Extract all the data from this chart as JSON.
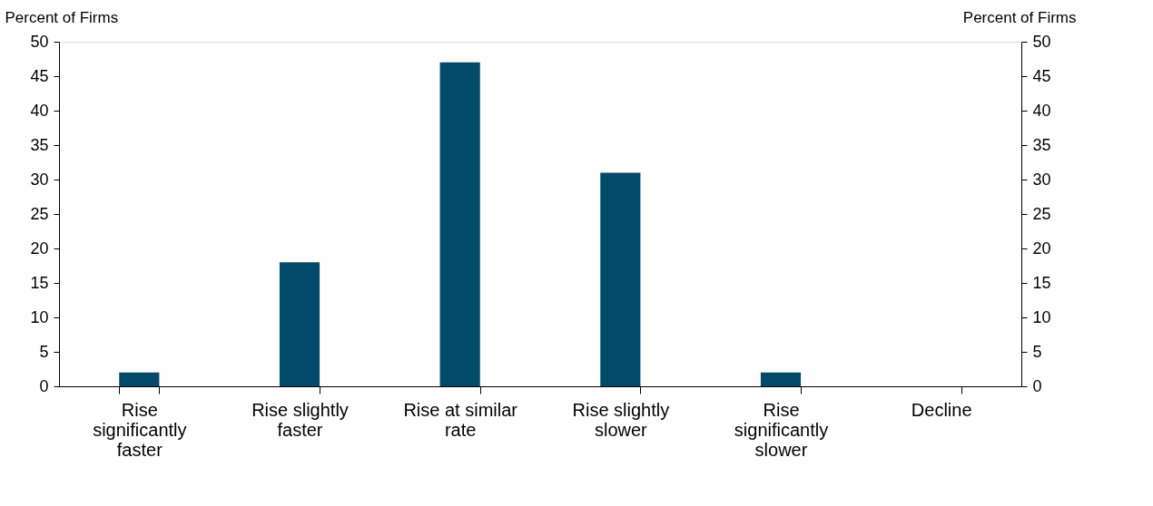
{
  "chart_data": {
    "type": "bar",
    "ylabel": "Percent of Firms",
    "y2label": "Percent of Firms",
    "categories": [
      "Rise significantly faster",
      "Rise slightly faster",
      "Rise at similar rate",
      "Rise slightly slower",
      "Rise significantly slower",
      "Decline"
    ],
    "values": [
      2,
      18,
      47,
      31,
      2,
      0
    ],
    "color": "#024a6a",
    "ylim": [
      0,
      50
    ],
    "yticks": [
      0,
      5,
      10,
      15,
      20,
      25,
      30,
      35,
      40,
      45,
      50
    ],
    "y2lim": [
      0,
      50
    ],
    "y2ticks": [
      0,
      5,
      10,
      15,
      20,
      25,
      30,
      35,
      40,
      45,
      50
    ],
    "grid": false
  }
}
